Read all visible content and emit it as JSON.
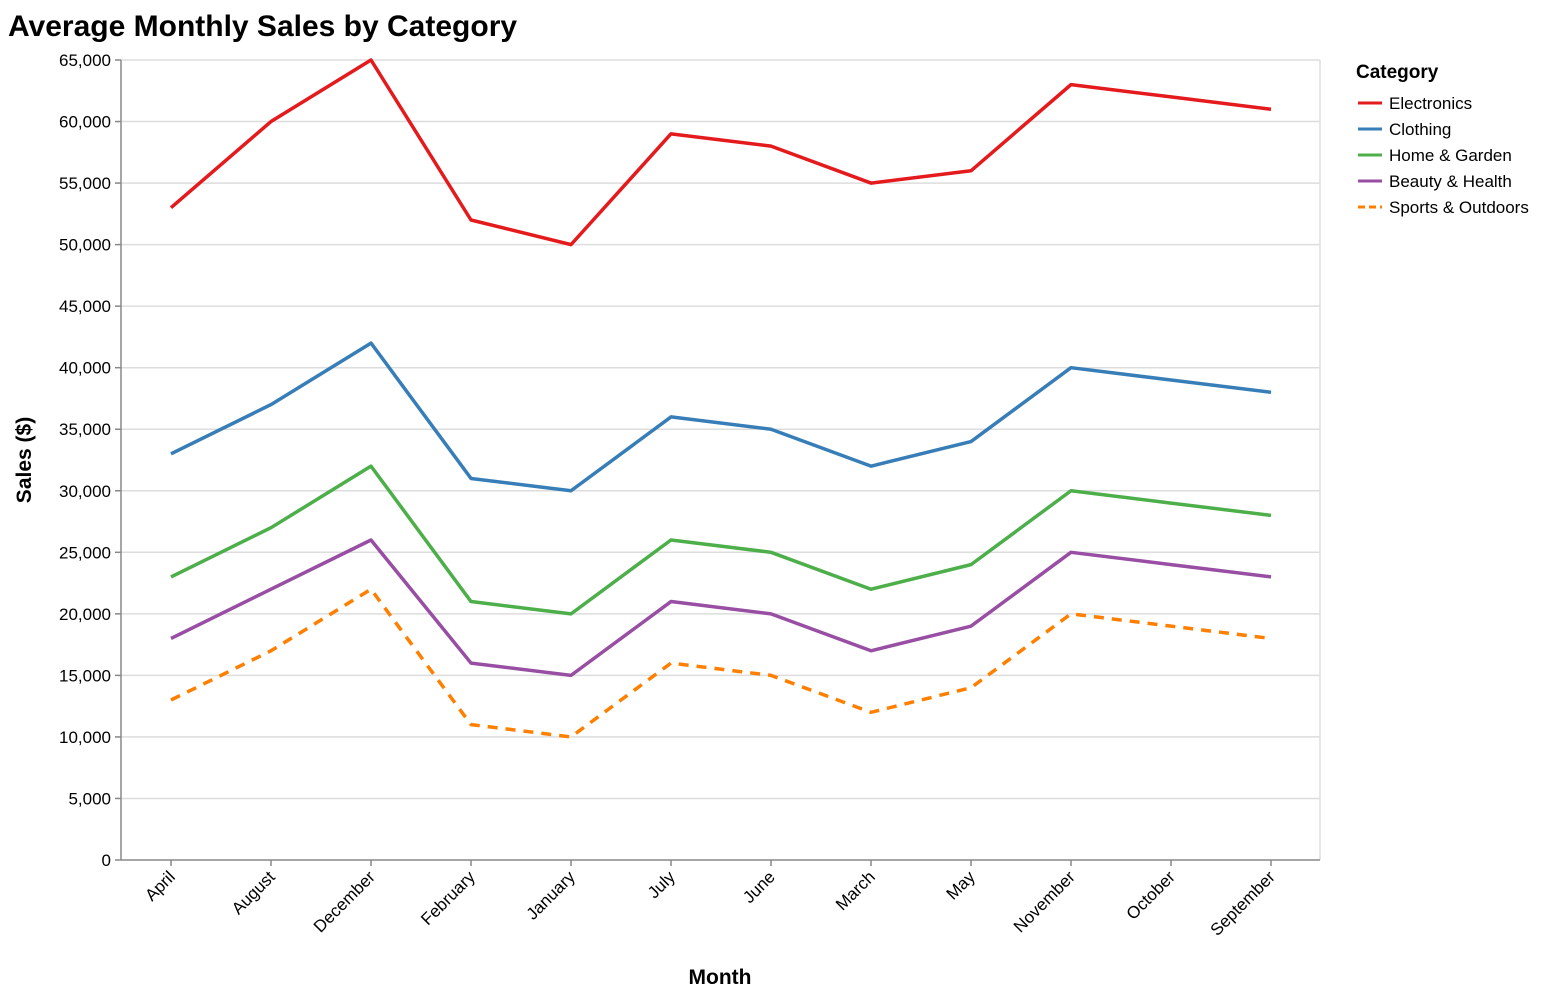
{
  "chart_data": {
    "type": "line",
    "title": "Average Monthly Sales by Category",
    "xlabel": "Month",
    "ylabel": "Sales ($)",
    "ylim": [
      0,
      65000
    ],
    "y_ticks": [
      0,
      5000,
      10000,
      15000,
      20000,
      25000,
      30000,
      35000,
      40000,
      45000,
      50000,
      55000,
      60000,
      65000
    ],
    "grid": "horizontal",
    "legend_title": "Category",
    "legend_position": "top-right",
    "categories": [
      "April",
      "August",
      "December",
      "February",
      "January",
      "July",
      "June",
      "March",
      "May",
      "November",
      "October",
      "September"
    ],
    "series": [
      {
        "name": "Electronics",
        "color": "#e41a1c",
        "dashed": false,
        "values": [
          53000,
          60000,
          65000,
          52000,
          50000,
          59000,
          58000,
          55000,
          56000,
          63000,
          62000,
          61000
        ]
      },
      {
        "name": "Clothing",
        "color": "#377eb8",
        "dashed": false,
        "values": [
          33000,
          37000,
          42000,
          31000,
          30000,
          36000,
          35000,
          32000,
          34000,
          40000,
          39000,
          38000
        ]
      },
      {
        "name": "Home & Garden",
        "color": "#4daf4a",
        "dashed": false,
        "values": [
          23000,
          27000,
          32000,
          21000,
          20000,
          26000,
          25000,
          22000,
          24000,
          30000,
          29000,
          28000
        ]
      },
      {
        "name": "Beauty & Health",
        "color": "#984ea3",
        "dashed": false,
        "values": [
          18000,
          22000,
          26000,
          16000,
          15000,
          21000,
          20000,
          17000,
          19000,
          25000,
          24000,
          23000
        ]
      },
      {
        "name": "Sports & Outdoors",
        "color": "#ff7f00",
        "dashed": true,
        "values": [
          13000,
          17000,
          22000,
          11000,
          10000,
          16000,
          15000,
          12000,
          14000,
          20000,
          19000,
          18000
        ]
      }
    ]
  }
}
